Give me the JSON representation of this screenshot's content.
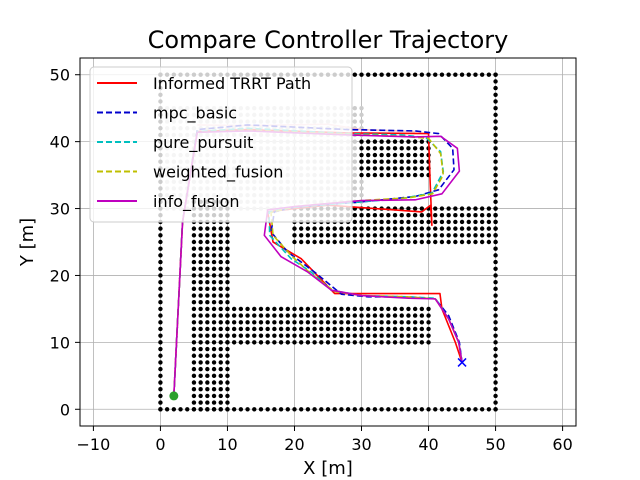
{
  "chart_data": {
    "type": "line",
    "title": "Compare Controller Trajectory",
    "xlabel": "X [m]",
    "ylabel": "Y [m]",
    "xlim": [
      -12,
      62
    ],
    "ylim": [
      -2.5,
      52.5
    ],
    "xticks": [
      -10,
      0,
      10,
      20,
      30,
      40,
      50,
      60
    ],
    "xtick_labels": [
      "−10",
      "0",
      "10",
      "20",
      "30",
      "40",
      "50",
      "60"
    ],
    "yticks": [
      0,
      10,
      20,
      30,
      40,
      50
    ],
    "ytick_labels": [
      "0",
      "10",
      "20",
      "30",
      "40",
      "50"
    ],
    "grid": true,
    "legend_position": "upper-left",
    "obstacle_color": "#000000",
    "explored_color": "#cccccc",
    "obstacles": {
      "boundary_left": {
        "x": [
          0,
          0
        ],
        "y": [
          0,
          50
        ]
      },
      "boundary_bottom": {
        "x": [
          0,
          50
        ],
        "y": [
          0,
          0
        ]
      },
      "boundary_right": {
        "x": [
          50,
          50
        ],
        "y": [
          0,
          50
        ]
      },
      "boundary_top": {
        "x": [
          0,
          50
        ],
        "y": [
          50,
          50
        ]
      },
      "column_left": {
        "x": [
          5,
          10
        ],
        "y": [
          0,
          31
        ]
      },
      "block_lower": {
        "x": [
          10,
          40
        ],
        "y": [
          10,
          15
        ]
      },
      "block_middle": {
        "x": [
          20,
          50
        ],
        "y": [
          25,
          30
        ]
      },
      "block_upper": {
        "x": [
          30,
          40
        ],
        "y": [
          35,
          40
        ]
      },
      "explored_region": {
        "x": [
          0,
          30
        ],
        "y": [
          30,
          45
        ]
      }
    },
    "series": [
      {
        "name": "Informed TRRT Path",
        "color": "#ff0000",
        "dash": "solid",
        "points": [
          [
            2,
            2
          ],
          [
            3.3,
            28
          ],
          [
            5.5,
            41.5
          ],
          [
            13,
            41.8
          ],
          [
            28,
            41.3
          ],
          [
            40,
            41.2
          ],
          [
            40.2,
            35
          ],
          [
            40.5,
            27.5
          ],
          [
            40.3,
            30.5
          ],
          [
            39,
            29.5
          ],
          [
            25,
            30.5
          ],
          [
            20,
            30
          ],
          [
            16,
            29.5
          ],
          [
            16.8,
            25
          ],
          [
            21,
            22.5
          ],
          [
            26,
            17.3
          ],
          [
            41.7,
            17.3
          ],
          [
            42,
            15
          ],
          [
            44,
            10
          ],
          [
            45,
            7
          ]
        ]
      },
      {
        "name": "mpc_basic",
        "color": "#0000cc",
        "dash": "dashed",
        "points": [
          [
            2,
            2
          ],
          [
            3.3,
            28
          ],
          [
            5.5,
            41.8
          ],
          [
            13,
            42.5
          ],
          [
            28,
            41.8
          ],
          [
            38,
            41.6
          ],
          [
            41.5,
            41.2
          ],
          [
            43.6,
            39
          ],
          [
            43.8,
            35.8
          ],
          [
            41.5,
            32.8
          ],
          [
            38,
            31.8
          ],
          [
            30,
            31
          ],
          [
            20,
            30.2
          ],
          [
            17,
            29.5
          ],
          [
            16.5,
            26.5
          ],
          [
            19,
            23.5
          ],
          [
            23,
            20.5
          ],
          [
            27,
            17.2
          ],
          [
            31,
            16.8
          ],
          [
            37,
            16.8
          ],
          [
            41,
            16.5
          ],
          [
            43,
            14
          ],
          [
            44.6,
            10
          ],
          [
            45,
            7
          ]
        ]
      },
      {
        "name": "pure_pursuit",
        "color": "#00bfbf",
        "dash": "dashed",
        "points": [
          [
            2,
            2
          ],
          [
            3.3,
            28
          ],
          [
            5.5,
            41.5
          ],
          [
            13,
            42
          ],
          [
            28,
            41.2
          ],
          [
            36,
            41
          ],
          [
            39.6,
            40.6
          ],
          [
            41.8,
            38.5
          ],
          [
            42.2,
            35.5
          ],
          [
            40.5,
            32.3
          ],
          [
            36,
            31.5
          ],
          [
            30,
            31
          ],
          [
            20,
            30.2
          ],
          [
            16.2,
            29.5
          ],
          [
            16.3,
            26
          ],
          [
            19.5,
            22.5
          ],
          [
            22.5,
            20.5
          ],
          [
            25.5,
            17.8
          ],
          [
            30,
            17
          ],
          [
            37,
            16.8
          ],
          [
            41,
            16.6
          ],
          [
            43,
            13.5
          ],
          [
            44.5,
            10
          ],
          [
            45,
            7
          ]
        ]
      },
      {
        "name": "weighted_fusion",
        "color": "#bfbf00",
        "dash": "dashed",
        "points": [
          [
            2,
            2
          ],
          [
            3.3,
            28
          ],
          [
            5.5,
            41.4
          ],
          [
            13,
            41.7
          ],
          [
            28,
            41.1
          ],
          [
            36,
            40.8
          ],
          [
            40,
            40.5
          ],
          [
            41.8,
            38.2
          ],
          [
            42.2,
            35
          ],
          [
            40.6,
            32.2
          ],
          [
            37,
            31.6
          ],
          [
            30,
            31.2
          ],
          [
            20,
            30.3
          ],
          [
            16.5,
            29.4
          ],
          [
            16.8,
            26
          ],
          [
            19.5,
            23
          ],
          [
            22.5,
            20.2
          ],
          [
            26,
            17.6
          ],
          [
            30,
            17
          ],
          [
            37,
            16.8
          ],
          [
            41,
            16.5
          ],
          [
            43,
            13.5
          ],
          [
            44.5,
            10
          ],
          [
            45,
            7
          ]
        ]
      },
      {
        "name": "info_fusion",
        "color": "#bf00bf",
        "dash": "solid",
        "points": [
          [
            2,
            2
          ],
          [
            3.3,
            28
          ],
          [
            5.5,
            41.4
          ],
          [
            13,
            41.6
          ],
          [
            28,
            41
          ],
          [
            38,
            40.7
          ],
          [
            41.8,
            40.8
          ],
          [
            44.3,
            39
          ],
          [
            44.6,
            35.6
          ],
          [
            42,
            32.2
          ],
          [
            38,
            31.3
          ],
          [
            30,
            31.2
          ],
          [
            20,
            30.3
          ],
          [
            16,
            29.8
          ],
          [
            15.5,
            26
          ],
          [
            18,
            22.8
          ],
          [
            22,
            20.5
          ],
          [
            25.5,
            17.8
          ],
          [
            30,
            17
          ],
          [
            37,
            16.6
          ],
          [
            41,
            16.5
          ],
          [
            43,
            13.5
          ],
          [
            44.5,
            10
          ],
          [
            45,
            7
          ]
        ]
      }
    ],
    "start_point": {
      "x": 2,
      "y": 2,
      "color": "#2ca02c"
    },
    "goal_point": {
      "x": 45,
      "y": 7,
      "color": "#0000ff"
    },
    "path_faint_overlay": {
      "color": "#f4c6cc",
      "points": [
        [
          5.5,
          42.5
        ],
        [
          13,
          42.4
        ],
        [
          25,
          42.6
        ],
        [
          30,
          41.8
        ],
        [
          38,
          41.5
        ]
      ]
    }
  }
}
